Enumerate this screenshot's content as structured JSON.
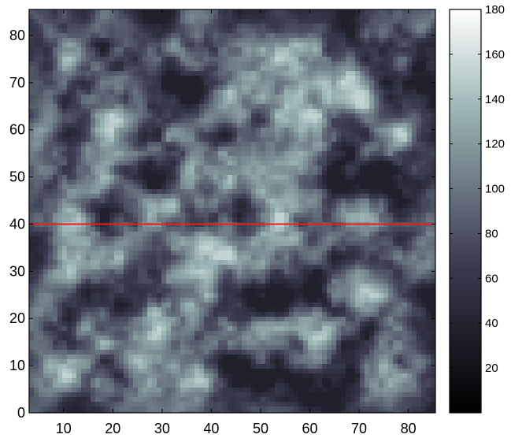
{
  "chart_data": {
    "type": "heatmap",
    "title": "",
    "xlabel": "",
    "ylabel": "",
    "xlim": [
      3,
      85.5
    ],
    "ylim": [
      0,
      85.5
    ],
    "xticks": [
      10,
      20,
      30,
      40,
      50,
      60,
      70,
      80
    ],
    "yticks": [
      0,
      10,
      20,
      30,
      40,
      50,
      60,
      70,
      80
    ],
    "xtick_labels": [
      "10",
      "20",
      "30",
      "40",
      "50",
      "60",
      "70",
      "80"
    ],
    "ytick_labels": [
      "0",
      "10",
      "20",
      "30",
      "40",
      "50",
      "60",
      "70",
      "80"
    ],
    "colorbar": {
      "range": [
        0,
        180
      ],
      "ticks": [
        20,
        40,
        60,
        80,
        100,
        120,
        140,
        160,
        180
      ],
      "tick_labels": [
        "20",
        "40",
        "60",
        "80",
        "100",
        "120",
        "140",
        "160",
        "180"
      ],
      "colormap": "bone"
    },
    "annotations": [
      {
        "type": "hline",
        "y": 40,
        "color": "#e8201a"
      }
    ],
    "grid": false
  }
}
